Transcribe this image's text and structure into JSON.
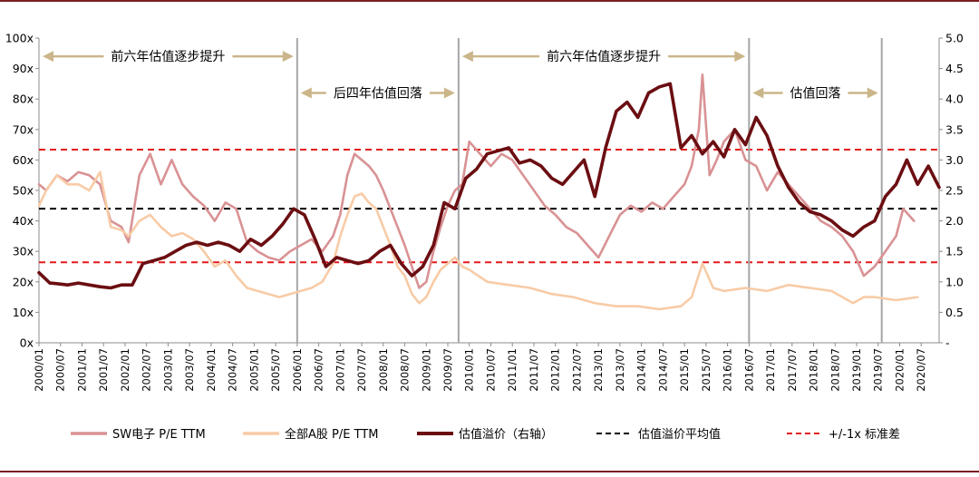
{
  "chart_data": {
    "type": "line",
    "title": "",
    "xlabel": "",
    "ylabel": "",
    "ylabel_right": "",
    "y_left": {
      "min": 0,
      "max": 100,
      "step": 10,
      "tick_suffix": "x"
    },
    "y_right": {
      "min": 0,
      "max": 5,
      "step": 0.5,
      "zero_label": "-"
    },
    "x_start": "2000-01",
    "x_end": "2020-12",
    "x_tick_labels": [
      "2000/01",
      "2000/07",
      "2001/01",
      "2001/07",
      "2002/01",
      "2002/07",
      "2003/01",
      "2003/07",
      "2004/01",
      "2004/07",
      "2005/01",
      "2005/07",
      "2006/01",
      "2006/07",
      "2007/01",
      "2007/07",
      "2008/01",
      "2008/07",
      "2009/01",
      "2009/07",
      "2010/01",
      "2010/07",
      "2011/01",
      "2011/07",
      "2012/01",
      "2012/07",
      "2013/01",
      "2013/07",
      "2014/01",
      "2014/07",
      "2015/01",
      "2015/07",
      "2016/01",
      "2016/07",
      "2017/01",
      "2017/07",
      "2018/01",
      "2018/07",
      "2019/01",
      "2019/07",
      "2020/01",
      "2020/07"
    ],
    "colors": {
      "sw_pe": "#d99294",
      "all_a_pe": "#f8cba6",
      "premium": "#6b0e12",
      "mean": "#000000",
      "std": "#e3191c",
      "divider": "#a6a6a6",
      "arrow": "#cbb68a"
    },
    "series": [
      {
        "name": "SW电子 P/E TTM",
        "key": "sw_pe",
        "axis": "left",
        "x": [
          "2000-01",
          "2000-03",
          "2000-06",
          "2000-09",
          "2000-12",
          "2001-03",
          "2001-06",
          "2001-09",
          "2001-12",
          "2002-02",
          "2002-05",
          "2002-08",
          "2002-11",
          "2003-02",
          "2003-05",
          "2003-08",
          "2003-11",
          "2004-02",
          "2004-05",
          "2004-08",
          "2004-11",
          "2005-02",
          "2005-05",
          "2005-08",
          "2005-11",
          "2006-02",
          "2006-05",
          "2006-08",
          "2006-11",
          "2007-01",
          "2007-03",
          "2007-05",
          "2007-07",
          "2007-09",
          "2007-11",
          "2008-01",
          "2008-03",
          "2008-05",
          "2008-07",
          "2008-09",
          "2008-11",
          "2009-01",
          "2009-03",
          "2009-05",
          "2009-07",
          "2009-09",
          "2009-11",
          "2010-01",
          "2010-04",
          "2010-07",
          "2010-10",
          "2011-01",
          "2011-04",
          "2011-07",
          "2011-10",
          "2012-01",
          "2012-04",
          "2012-07",
          "2012-10",
          "2013-01",
          "2013-04",
          "2013-07",
          "2013-10",
          "2014-01",
          "2014-04",
          "2014-07",
          "2014-10",
          "2015-01",
          "2015-03",
          "2015-05",
          "2015-06",
          "2015-08",
          "2015-10",
          "2015-12",
          "2016-03",
          "2016-06",
          "2016-09",
          "2016-12",
          "2017-03",
          "2017-06",
          "2017-09",
          "2017-12",
          "2018-03",
          "2018-06",
          "2018-09",
          "2018-12",
          "2019-03",
          "2019-06",
          "2019-09",
          "2019-12",
          "2020-02",
          "2020-05"
        ],
        "values": [
          52,
          50,
          55,
          53,
          56,
          55,
          52,
          40,
          38,
          33,
          55,
          62,
          52,
          60,
          52,
          48,
          45,
          40,
          46,
          44,
          33,
          30,
          28,
          27,
          30,
          32,
          34,
          30,
          35,
          42,
          55,
          62,
          60,
          58,
          55,
          50,
          44,
          38,
          32,
          25,
          18,
          20,
          30,
          38,
          45,
          50,
          52,
          66,
          62,
          58,
          62,
          60,
          55,
          50,
          45,
          42,
          38,
          36,
          32,
          28,
          35,
          42,
          45,
          43,
          46,
          44,
          48,
          52,
          58,
          70,
          88,
          55,
          60,
          66,
          70,
          60,
          58,
          50,
          56,
          52,
          48,
          44,
          40,
          38,
          35,
          30,
          22,
          25,
          30,
          35,
          44,
          40
        ]
      },
      {
        "name": "全部A股 P/E TTM",
        "key": "all_a_pe",
        "axis": "left",
        "x": [
          "2000-01",
          "2000-03",
          "2000-06",
          "2000-09",
          "2000-12",
          "2001-03",
          "2001-06",
          "2001-09",
          "2001-12",
          "2002-02",
          "2002-05",
          "2002-08",
          "2002-11",
          "2003-02",
          "2003-05",
          "2003-08",
          "2003-11",
          "2004-02",
          "2004-05",
          "2004-08",
          "2004-11",
          "2005-02",
          "2005-05",
          "2005-08",
          "2005-11",
          "2006-02",
          "2006-05",
          "2006-08",
          "2006-11",
          "2007-01",
          "2007-03",
          "2007-05",
          "2007-07",
          "2007-09",
          "2007-11",
          "2008-01",
          "2008-03",
          "2008-05",
          "2008-07",
          "2008-09",
          "2008-11",
          "2009-01",
          "2009-03",
          "2009-05",
          "2009-07",
          "2009-09",
          "2009-11",
          "2010-01",
          "2010-06",
          "2010-12",
          "2011-06",
          "2011-12",
          "2012-06",
          "2012-12",
          "2013-06",
          "2013-12",
          "2014-06",
          "2014-12",
          "2015-03",
          "2015-06",
          "2015-09",
          "2015-12",
          "2016-06",
          "2016-12",
          "2017-06",
          "2017-12",
          "2018-06",
          "2018-12",
          "2019-03",
          "2019-06",
          "2019-12",
          "2020-06"
        ],
        "values": [
          45,
          50,
          55,
          52,
          52,
          50,
          56,
          38,
          37,
          35,
          40,
          42,
          38,
          35,
          36,
          34,
          30,
          25,
          27,
          22,
          18,
          17,
          16,
          15,
          16,
          17,
          18,
          20,
          26,
          35,
          42,
          48,
          49,
          46,
          44,
          38,
          32,
          25,
          22,
          16,
          13,
          15,
          20,
          24,
          26,
          28,
          25,
          24,
          20,
          19,
          18,
          16,
          15,
          13,
          12,
          12,
          11,
          12,
          15,
          26,
          18,
          17,
          18,
          17,
          19,
          18,
          17,
          13,
          15,
          15,
          14,
          15
        ]
      },
      {
        "name": "估值溢价（右轴）",
        "key": "premium",
        "axis": "right",
        "x": [
          "2000-01",
          "2000-04",
          "2000-06",
          "2000-09",
          "2000-12",
          "2001-03",
          "2001-06",
          "2001-09",
          "2001-12",
          "2002-03",
          "2002-06",
          "2002-09",
          "2002-12",
          "2003-03",
          "2003-06",
          "2003-09",
          "2003-12",
          "2004-03",
          "2004-06",
          "2004-09",
          "2004-12",
          "2005-03",
          "2005-06",
          "2005-09",
          "2005-12",
          "2006-03",
          "2006-06",
          "2006-09",
          "2006-12",
          "2007-03",
          "2007-06",
          "2007-09",
          "2007-12",
          "2008-03",
          "2008-06",
          "2008-09",
          "2008-12",
          "2009-03",
          "2009-06",
          "2009-09",
          "2009-12",
          "2010-03",
          "2010-06",
          "2010-09",
          "2010-12",
          "2011-03",
          "2011-06",
          "2011-09",
          "2011-12",
          "2012-03",
          "2012-06",
          "2012-09",
          "2012-12",
          "2013-03",
          "2013-06",
          "2013-09",
          "2013-12",
          "2014-03",
          "2014-06",
          "2014-09",
          "2014-12",
          "2015-03",
          "2015-06",
          "2015-09",
          "2015-12",
          "2016-03",
          "2016-06",
          "2016-09",
          "2016-12",
          "2017-03",
          "2017-06",
          "2017-09",
          "2017-12",
          "2018-03",
          "2018-06",
          "2018-09",
          "2018-12",
          "2019-03",
          "2019-06",
          "2019-09",
          "2019-12",
          "2020-03",
          "2020-06",
          "2020-09",
          "2020-12"
        ],
        "values": [
          1.15,
          0.98,
          0.97,
          0.95,
          0.98,
          0.95,
          0.92,
          0.9,
          0.95,
          0.95,
          1.3,
          1.35,
          1.4,
          1.5,
          1.6,
          1.65,
          1.6,
          1.65,
          1.6,
          1.5,
          1.7,
          1.6,
          1.75,
          1.95,
          2.2,
          2.1,
          1.7,
          1.25,
          1.4,
          1.35,
          1.3,
          1.35,
          1.5,
          1.6,
          1.3,
          1.1,
          1.25,
          1.6,
          2.3,
          2.2,
          2.7,
          2.85,
          3.1,
          3.15,
          3.2,
          2.95,
          3.0,
          2.9,
          2.7,
          2.6,
          2.8,
          3.0,
          2.4,
          3.2,
          3.8,
          3.95,
          3.7,
          4.1,
          4.2,
          4.25,
          3.2,
          3.4,
          3.1,
          3.3,
          3.05,
          3.5,
          3.25,
          3.7,
          3.4,
          2.9,
          2.55,
          2.3,
          2.15,
          2.1,
          2.0,
          1.85,
          1.75,
          1.9,
          2.0,
          2.4,
          2.6,
          3.0,
          2.6,
          2.9,
          2.55
        ]
      }
    ],
    "reference_lines": [
      {
        "name": "估值溢价平均值",
        "key": "mean",
        "axis": "right",
        "value": 2.2
      },
      {
        "name": "+/-1x 标准差",
        "key": "std",
        "axis": "right",
        "values": [
          3.17,
          1.32
        ]
      }
    ],
    "dividers": [
      "2006-01",
      "2009-10",
      "2016-07",
      "2019-08"
    ],
    "annotations": [
      {
        "text": "前六年估值逐步提升",
        "from": "2000-01",
        "to": "2006-01",
        "y": 94
      },
      {
        "text": "后四年估值回落",
        "from": "2006-01",
        "to": "2009-10",
        "y": 82
      },
      {
        "text": "前六年估值逐步提升",
        "from": "2009-10",
        "to": "2016-07",
        "y": 94
      },
      {
        "text": "估值回落",
        "from": "2016-07",
        "to": "2019-08",
        "y": 82
      }
    ],
    "legend_position": "bottom",
    "legend": [
      {
        "label": "SW电子 P/E TTM",
        "key": "sw_pe",
        "style": "solid"
      },
      {
        "label": "全部A股 P/E TTM",
        "key": "all_a_pe",
        "style": "solid"
      },
      {
        "label": "估值溢价（右轴）",
        "key": "premium",
        "style": "solid-bold"
      },
      {
        "label": "估值溢价平均值",
        "key": "mean",
        "style": "dashed"
      },
      {
        "label": "+/-1x 标准差",
        "key": "std",
        "style": "dashed"
      }
    ]
  }
}
